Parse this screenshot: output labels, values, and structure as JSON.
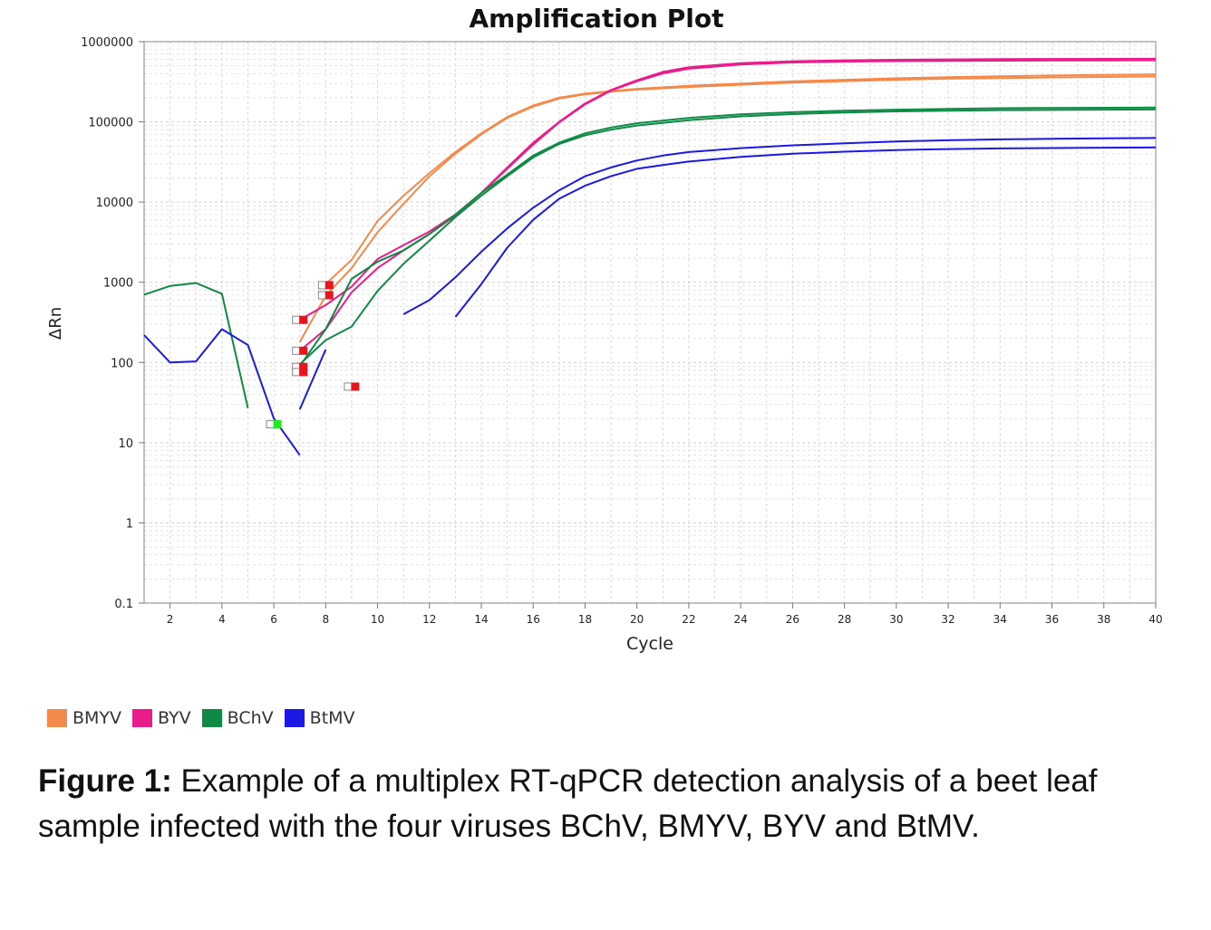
{
  "chart_data": {
    "type": "line",
    "title": "Amplification Plot",
    "xlabel": "Cycle",
    "ylabel": "ΔRn",
    "yscale": "log",
    "xlim": [
      1,
      40
    ],
    "ylim": [
      0.1,
      1000000
    ],
    "grid": true,
    "xticks": [
      2,
      4,
      6,
      8,
      10,
      12,
      14,
      16,
      18,
      20,
      22,
      24,
      26,
      28,
      30,
      32,
      34,
      36,
      38,
      40
    ],
    "yticks": [
      0.1,
      1,
      10,
      100,
      1000,
      10000,
      100000,
      1000000
    ],
    "ytick_labels": [
      "0.1",
      "1",
      "10",
      "100",
      "1000",
      "10000",
      "100000",
      "1000000"
    ],
    "legend_position": "bottom-left",
    "series": [
      {
        "name": "BMYV",
        "color": "#F4894A",
        "lines": [
          [
            [
              8,
              950
            ],
            [
              9,
              1900
            ],
            [
              10,
              5800
            ],
            [
              11,
              12000
            ],
            [
              12,
              23000
            ],
            [
              13,
              42000
            ],
            [
              14,
              72000
            ],
            [
              15,
              115000
            ],
            [
              16,
              160000
            ],
            [
              17,
              200000
            ],
            [
              18,
              225000
            ],
            [
              19,
              242000
            ],
            [
              20,
              258000
            ],
            [
              22,
              282000
            ],
            [
              24,
              300000
            ],
            [
              26,
              320000
            ],
            [
              28,
              335000
            ],
            [
              30,
              350000
            ],
            [
              32,
              360000
            ],
            [
              34,
              370000
            ],
            [
              36,
              378000
            ],
            [
              38,
              385000
            ],
            [
              40,
              390000
            ]
          ],
          [
            [
              7,
              180
            ],
            [
              8,
              680
            ],
            [
              9,
              1500
            ],
            [
              10,
              4200
            ],
            [
              11,
              9500
            ],
            [
              12,
              21000
            ],
            [
              13,
              40000
            ],
            [
              14,
              70000
            ],
            [
              15,
              112000
            ],
            [
              16,
              155000
            ],
            [
              17,
              195000
            ],
            [
              18,
              220000
            ],
            [
              19,
              238000
            ],
            [
              20,
              252000
            ],
            [
              22,
              272000
            ],
            [
              24,
              290000
            ],
            [
              26,
              308000
            ],
            [
              28,
              322000
            ],
            [
              30,
              335000
            ],
            [
              32,
              345000
            ],
            [
              34,
              352000
            ],
            [
              36,
              358000
            ],
            [
              38,
              363000
            ],
            [
              40,
              368000
            ]
          ]
        ]
      },
      {
        "name": "BYV",
        "color": "#EA1C8C",
        "lines": [
          [
            [
              7,
              340
            ],
            [
              8,
              520
            ],
            [
              9,
              880
            ],
            [
              10,
              1950
            ],
            [
              11,
              2900
            ],
            [
              12,
              4300
            ],
            [
              13,
              7000
            ],
            [
              14,
              13000
            ],
            [
              15,
              27000
            ],
            [
              16,
              55000
            ],
            [
              17,
              100000
            ],
            [
              18,
              170000
            ],
            [
              19,
              250000
            ],
            [
              20,
              330000
            ],
            [
              21,
              420000
            ],
            [
              22,
              480000
            ],
            [
              24,
              540000
            ],
            [
              26,
              570000
            ],
            [
              28,
              585000
            ],
            [
              30,
              595000
            ],
            [
              32,
              600000
            ],
            [
              34,
              605000
            ],
            [
              36,
              608000
            ],
            [
              38,
              610000
            ],
            [
              40,
              612000
            ]
          ],
          [
            [
              7,
              140
            ],
            [
              8,
              260
            ],
            [
              9,
              750
            ],
            [
              10,
              1500
            ],
            [
              11,
              2500
            ],
            [
              12,
              4000
            ],
            [
              13,
              6800
            ],
            [
              14,
              13000
            ],
            [
              15,
              26000
            ],
            [
              16,
              52000
            ],
            [
              17,
              98000
            ],
            [
              18,
              165000
            ],
            [
              19,
              245000
            ],
            [
              20,
              320000
            ],
            [
              21,
              400000
            ],
            [
              22,
              460000
            ],
            [
              24,
              520000
            ],
            [
              26,
              550000
            ],
            [
              28,
              565000
            ],
            [
              30,
              572000
            ],
            [
              32,
              577000
            ],
            [
              34,
              580000
            ],
            [
              36,
              582000
            ],
            [
              38,
              583000
            ],
            [
              40,
              585000
            ]
          ]
        ]
      },
      {
        "name": "BChV",
        "color": "#0E8A44",
        "lines": [
          [
            [
              1,
              700
            ],
            [
              2,
              900
            ],
            [
              3,
              980
            ],
            [
              4,
              720
            ],
            [
              5,
              27
            ]
          ],
          [
            [
              7,
              90
            ],
            [
              8,
              260
            ],
            [
              9,
              1100
            ],
            [
              10,
              1800
            ],
            [
              11,
              2500
            ],
            [
              12,
              4000
            ],
            [
              13,
              7000
            ],
            [
              14,
              13000
            ],
            [
              15,
              22000
            ],
            [
              16,
              38000
            ],
            [
              17,
              55000
            ],
            [
              18,
              72000
            ],
            [
              19,
              85000
            ],
            [
              20,
              96000
            ],
            [
              22,
              112000
            ],
            [
              24,
              124000
            ],
            [
              26,
              132000
            ],
            [
              28,
              138000
            ],
            [
              30,
              142000
            ],
            [
              32,
              145000
            ],
            [
              34,
              148000
            ],
            [
              36,
              149000
            ],
            [
              38,
              150000
            ],
            [
              40,
              151000
            ]
          ],
          [
            [
              7,
              95
            ],
            [
              8,
              190
            ],
            [
              9,
              280
            ],
            [
              10,
              780
            ],
            [
              11,
              1700
            ],
            [
              12,
              3300
            ],
            [
              13,
              6500
            ],
            [
              14,
              12000
            ],
            [
              15,
              21000
            ],
            [
              16,
              36000
            ],
            [
              17,
              53000
            ],
            [
              18,
              68000
            ],
            [
              19,
              80000
            ],
            [
              20,
              90000
            ],
            [
              22,
              105000
            ],
            [
              24,
              117000
            ],
            [
              26,
              125000
            ],
            [
              28,
              131000
            ],
            [
              30,
              135000
            ],
            [
              32,
              138000
            ],
            [
              34,
              140000
            ],
            [
              36,
              141000
            ],
            [
              38,
              142000
            ],
            [
              40,
              143000
            ]
          ]
        ]
      },
      {
        "name": "BtMV",
        "color": "#1C18E6",
        "lines": [
          [
            [
              1,
              220
            ],
            [
              2,
              100
            ],
            [
              3,
              103
            ],
            [
              4,
              260
            ],
            [
              5,
              165
            ],
            [
              6,
              20
            ],
            [
              7,
              7
            ]
          ],
          [
            [
              7,
              26
            ],
            [
              8,
              145
            ]
          ],
          [
            [
              11,
              400
            ],
            [
              12,
              600
            ],
            [
              13,
              1150
            ],
            [
              14,
              2400
            ],
            [
              15,
              4700
            ],
            [
              16,
              8500
            ],
            [
              17,
              14000
            ],
            [
              18,
              21000
            ],
            [
              19,
              27000
            ],
            [
              20,
              33000
            ],
            [
              21,
              38000
            ],
            [
              22,
              42000
            ],
            [
              24,
              47000
            ],
            [
              26,
              51000
            ],
            [
              28,
              54000
            ],
            [
              30,
              57000
            ],
            [
              32,
              59000
            ],
            [
              34,
              60500
            ],
            [
              36,
              61500
            ],
            [
              38,
              62500
            ],
            [
              40,
              63000
            ]
          ],
          [
            [
              13,
              370
            ],
            [
              14,
              950
            ],
            [
              15,
              2700
            ],
            [
              16,
              6000
            ],
            [
              17,
              11000
            ],
            [
              18,
              16000
            ],
            [
              19,
              21000
            ],
            [
              20,
              26000
            ],
            [
              21,
              29000
            ],
            [
              22,
              32000
            ],
            [
              24,
              36500
            ],
            [
              26,
              40000
            ],
            [
              28,
              42500
            ],
            [
              30,
              44500
            ],
            [
              32,
              45800
            ],
            [
              34,
              46600
            ],
            [
              36,
              47200
            ],
            [
              38,
              47600
            ],
            [
              40,
              48000
            ]
          ]
        ]
      }
    ],
    "threshold_markers": [
      {
        "x": 7.0,
        "y": 340,
        "color": "#E8141E"
      },
      {
        "x": 7.0,
        "y": 140,
        "color": "#E8141E"
      },
      {
        "x": 7.0,
        "y": 88,
        "color": "#E8141E"
      },
      {
        "x": 7.0,
        "y": 76,
        "color": "#E8141E"
      },
      {
        "x": 8.0,
        "y": 920,
        "color": "#E8141E"
      },
      {
        "x": 8.0,
        "y": 690,
        "color": "#E8141E"
      },
      {
        "x": 9.0,
        "y": 50,
        "color": "#E8141E"
      },
      {
        "x": 6.0,
        "y": 17,
        "color": "#22E822"
      }
    ]
  },
  "legend": {
    "items": [
      {
        "label": "BMYV",
        "color": "#F4894A"
      },
      {
        "label": "BYV",
        "color": "#EA1C8C"
      },
      {
        "label": "BChV",
        "color": "#0E8A44"
      },
      {
        "label": "BtMV",
        "color": "#1C18E6"
      }
    ]
  },
  "caption": {
    "label": "Figure 1:",
    "text": " Example of a multiplex RT-qPCR detection analysis of a beet leaf sample infected with the four viruses BChV, BMYV, BYV and BtMV."
  }
}
